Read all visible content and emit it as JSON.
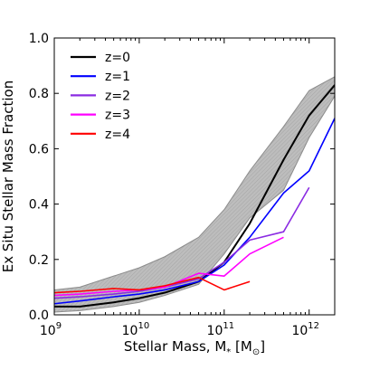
{
  "chart_data": {
    "type": "line",
    "xlabel": "Stellar Mass, M",
    "xlabel_sub": "*",
    "xlabel_unit_open": " [M",
    "xlabel_unit_sub": "⊙",
    "xlabel_unit_close": "]",
    "ylabel": "Ex Situ Stellar Mass Fraction",
    "x_scale": "log",
    "xlim": [
      1000000000,
      2000000000000
    ],
    "ylim": [
      0,
      1.0
    ],
    "x_ticks": [
      {
        "value": 1000000000,
        "base": "10",
        "exp": "9"
      },
      {
        "value": 10000000000,
        "base": "10",
        "exp": "10"
      },
      {
        "value": 100000000000,
        "base": "10",
        "exp": "11"
      },
      {
        "value": 1000000000000,
        "base": "10",
        "exp": "12"
      }
    ],
    "y_ticks": [
      {
        "value": 0.0,
        "label": "0.0"
      },
      {
        "value": 0.2,
        "label": "0.2"
      },
      {
        "value": 0.4,
        "label": "0.4"
      },
      {
        "value": 0.6,
        "label": "0.6"
      },
      {
        "value": 0.8,
        "label": "0.8"
      },
      {
        "value": 1.0,
        "label": "1.0"
      }
    ],
    "grid": false,
    "legend_position": "top-left",
    "band": {
      "color": "#b3b3b3",
      "x": [
        1000000000,
        2000000000,
        5000000000,
        10000000000,
        20000000000,
        50000000000,
        100000000000,
        200000000000,
        500000000000,
        1000000000000,
        2000000000000
      ],
      "lower": [
        0.01,
        0.015,
        0.03,
        0.045,
        0.07,
        0.11,
        0.22,
        0.35,
        0.45,
        0.64,
        0.79
      ],
      "upper": [
        0.09,
        0.1,
        0.14,
        0.17,
        0.21,
        0.28,
        0.38,
        0.52,
        0.68,
        0.81,
        0.86
      ]
    },
    "series": [
      {
        "name": "z=0",
        "color": "#000000",
        "x": [
          1000000000,
          2000000000,
          5000000000,
          10000000000,
          20000000000,
          50000000000,
          100000000000,
          200000000000,
          500000000000,
          1000000000000,
          2000000000000
        ],
        "y": [
          0.03,
          0.03,
          0.045,
          0.06,
          0.08,
          0.12,
          0.19,
          0.33,
          0.56,
          0.72,
          0.83
        ]
      },
      {
        "name": "z=1",
        "color": "#0000ff",
        "x": [
          1000000000,
          2000000000,
          5000000000,
          10000000000,
          20000000000,
          50000000000,
          100000000000,
          200000000000,
          500000000000,
          1000000000000,
          2000000000000
        ],
        "y": [
          0.04,
          0.05,
          0.065,
          0.075,
          0.09,
          0.12,
          0.18,
          0.28,
          0.44,
          0.52,
          0.71
        ]
      },
      {
        "name": "z=2",
        "color": "#8a2be2",
        "x": [
          1000000000,
          2000000000,
          5000000000,
          10000000000,
          20000000000,
          50000000000,
          100000000000,
          200000000000,
          500000000000,
          1000000000000
        ],
        "y": [
          0.06,
          0.065,
          0.075,
          0.085,
          0.1,
          0.13,
          0.19,
          0.27,
          0.3,
          0.46
        ]
      },
      {
        "name": "z=3",
        "color": "#ff00ff",
        "x": [
          1000000000,
          2000000000,
          5000000000,
          10000000000,
          20000000000,
          50000000000,
          100000000000,
          200000000000,
          500000000000
        ],
        "y": [
          0.07,
          0.075,
          0.085,
          0.09,
          0.1,
          0.15,
          0.14,
          0.22,
          0.28
        ]
      },
      {
        "name": "z=4",
        "color": "#ff0000",
        "x": [
          1000000000,
          2000000000,
          5000000000,
          10000000000,
          20000000000,
          50000000000,
          100000000000,
          200000000000
        ],
        "y": [
          0.08,
          0.085,
          0.095,
          0.09,
          0.105,
          0.135,
          0.09,
          0.12
        ]
      }
    ]
  }
}
